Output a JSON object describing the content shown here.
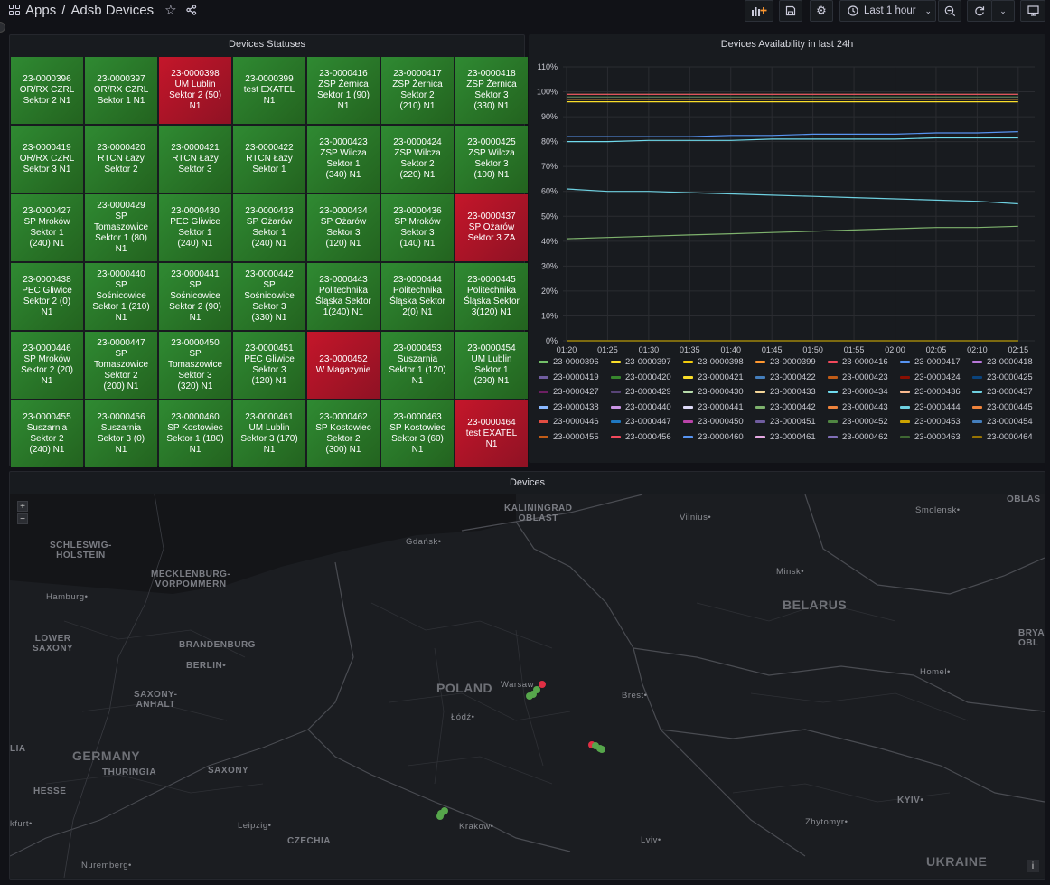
{
  "header": {
    "breadcrumb_apps": "Apps",
    "breadcrumb_sep": "/",
    "breadcrumb_title": "Adsb Devices",
    "time_range": "Last 1 hour"
  },
  "status_panel": {
    "title": "Devices Statuses",
    "cells": [
      {
        "text": "23-0000396\nOR/RX CZRL\nSektor 2 N1",
        "status": "ok"
      },
      {
        "text": "23-0000397\nOR/RX CZRL\nSektor 1 N1",
        "status": "ok"
      },
      {
        "text": "23-0000398\nUM Lublin\nSektor 2 (50)\nN1",
        "status": "bad"
      },
      {
        "text": "23-0000399\ntest EXATEL\nN1",
        "status": "ok"
      },
      {
        "text": "23-0000416\nZSP Żernica\nSektor 1 (90)\nN1",
        "status": "ok"
      },
      {
        "text": "23-0000417\nZSP Żernica\nSektor 2\n(210) N1",
        "status": "ok"
      },
      {
        "text": "23-0000418\nZSP Żernica\nSektor 3\n(330) N1",
        "status": "ok"
      },
      {
        "text": "23-0000419\nOR/RX CZRL\nSektor 3 N1",
        "status": "ok"
      },
      {
        "text": "23-0000420\nRTCN Łazy\nSektor 2",
        "status": "ok"
      },
      {
        "text": "23-0000421\nRTCN Łazy\nSektor 3",
        "status": "ok"
      },
      {
        "text": "23-0000422\nRTCN Łazy\nSektor 1",
        "status": "ok"
      },
      {
        "text": "23-0000423\nZSP Wilcza\nSektor 1\n(340) N1",
        "status": "ok"
      },
      {
        "text": "23-0000424\nZSP Wilcza\nSektor 2\n(220) N1",
        "status": "ok"
      },
      {
        "text": "23-0000425\nZSP Wilcza\nSektor 3\n(100) N1",
        "status": "ok"
      },
      {
        "text": "23-0000427\nSP Mroków\nSektor 1\n(240) N1",
        "status": "ok"
      },
      {
        "text": "23-0000429\nSP\nTomaszowice\nSektor 1 (80)\nN1",
        "status": "ok"
      },
      {
        "text": "23-0000430\nPEC Gliwice\nSektor 1\n(240) N1",
        "status": "ok"
      },
      {
        "text": "23-0000433\nSP Ożarów\nSektor 1\n(240) N1",
        "status": "ok"
      },
      {
        "text": "23-0000434\nSP Ożarów\nSektor 3\n(120) N1",
        "status": "ok"
      },
      {
        "text": "23-0000436\nSP Mroków\nSektor 3\n(140) N1",
        "status": "ok"
      },
      {
        "text": "23-0000437\nSP Ożarów\nSektor 3 ZA",
        "status": "bad"
      },
      {
        "text": "23-0000438\nPEC Gliwice\nSektor 2 (0)\nN1",
        "status": "ok"
      },
      {
        "text": "23-0000440\nSP\nSośnicowice\nSektor 1 (210)\nN1",
        "status": "ok"
      },
      {
        "text": "23-0000441\nSP\nSośnicowice\nSektor 2 (90)\nN1",
        "status": "ok"
      },
      {
        "text": "23-0000442\nSP\nSośnicowice\nSektor 3\n(330) N1",
        "status": "ok"
      },
      {
        "text": "23-0000443\nPolitechnika\nŚląska Sektor\n1(240) N1",
        "status": "ok"
      },
      {
        "text": "23-0000444\nPolitechnika\nŚląska Sektor\n2(0) N1",
        "status": "ok"
      },
      {
        "text": "23-0000445\nPolitechnika\nŚląska Sektor\n3(120) N1",
        "status": "ok"
      },
      {
        "text": "23-0000446\nSP Mroków\nSektor 2 (20)\nN1",
        "status": "ok"
      },
      {
        "text": "23-0000447\nSP\nTomaszowice\nSektor 2\n(200) N1",
        "status": "ok"
      },
      {
        "text": "23-0000450\nSP\nTomaszowice\nSektor 3\n(320) N1",
        "status": "ok"
      },
      {
        "text": "23-0000451\nPEC Gliwice\nSektor 3\n(120) N1",
        "status": "ok"
      },
      {
        "text": "23-0000452\nW Magazynie",
        "status": "bad"
      },
      {
        "text": "23-0000453\nSuszarnia\nSektor 1 (120)\nN1",
        "status": "ok"
      },
      {
        "text": "23-0000454\nUM Lublin\nSektor 1\n(290) N1",
        "status": "ok"
      },
      {
        "text": "23-0000455\nSuszarnia\nSektor 2\n(240) N1",
        "status": "ok"
      },
      {
        "text": "23-0000456\nSuszarnia\nSektor 3 (0)\nN1",
        "status": "ok"
      },
      {
        "text": "23-0000460\nSP Kostowiec\nSektor 1 (180)\nN1",
        "status": "ok"
      },
      {
        "text": "23-0000461\nUM Lublin\nSektor 3 (170)\nN1",
        "status": "ok"
      },
      {
        "text": "23-0000462\nSP Kostowiec\nSektor 2\n(300) N1",
        "status": "ok"
      },
      {
        "text": "23-0000463\nSP Kostowiec\nSektor 3 (60)\nN1",
        "status": "ok"
      },
      {
        "text": "23-0000464\ntest EXATEL\nN1",
        "status": "bad"
      }
    ]
  },
  "chart_panel": {
    "title": "Devices Availability in last 24h"
  },
  "chart_data": {
    "type": "line",
    "title": "Devices Availability in last 24h",
    "xlabel": "",
    "ylabel": "",
    "x": [
      "01:20",
      "01:25",
      "01:30",
      "01:35",
      "01:40",
      "01:45",
      "01:50",
      "01:55",
      "02:00",
      "02:05",
      "02:10",
      "02:15"
    ],
    "yticks": [
      "0%",
      "10%",
      "20%",
      "30%",
      "40%",
      "50%",
      "60%",
      "70%",
      "80%",
      "90%",
      "100%",
      "110%"
    ],
    "ylim": [
      0,
      110
    ],
    "grid": true,
    "legend": "bottom",
    "series": [
      {
        "name": "23-0000396",
        "color": "#73bf69",
        "values": [
          99,
          99,
          99,
          99,
          99,
          99,
          99,
          99,
          99,
          99,
          99,
          99
        ]
      },
      {
        "name": "23-0000397",
        "color": "#fade2a",
        "values": [
          0,
          0,
          0,
          0,
          0,
          0,
          0,
          0,
          0,
          0,
          0,
          0
        ]
      },
      {
        "name": "23-0000398",
        "color": "#f2cc0c",
        "values": [
          97,
          97,
          97,
          97,
          97,
          97,
          97,
          97,
          97,
          97,
          97,
          97
        ]
      },
      {
        "name": "23-0000399",
        "color": "#ff9830",
        "values": [
          98,
          98,
          98,
          98,
          98,
          98,
          98,
          98,
          98,
          98,
          98,
          98
        ]
      },
      {
        "name": "23-0000416",
        "color": "#f2495c",
        "values": [
          99,
          99,
          99,
          99,
          99,
          99,
          99,
          99,
          99,
          99,
          99,
          99
        ]
      },
      {
        "name": "23-0000417",
        "color": "#5794f2",
        "values": [
          82,
          82,
          82,
          82,
          82.5,
          82.5,
          83,
          83,
          83,
          83.5,
          83.5,
          84
        ]
      },
      {
        "name": "23-0000418",
        "color": "#b877d9",
        "values": [
          98,
          98,
          98,
          98,
          98,
          98,
          98,
          98,
          98,
          98,
          98,
          98
        ]
      },
      {
        "name": "23-0000419",
        "color": "#705da0",
        "values": [
          98,
          98,
          98,
          98,
          98,
          98,
          98,
          98,
          98,
          98,
          98,
          98
        ]
      },
      {
        "name": "23-0000420",
        "color": "#37872d",
        "values": [
          97,
          97,
          97,
          97,
          97,
          97,
          97,
          97,
          97,
          97,
          97,
          97
        ]
      },
      {
        "name": "23-0000421",
        "color": "#fade2a",
        "values": [
          96,
          96,
          96,
          96,
          96,
          96,
          96,
          96,
          96,
          96,
          96,
          96
        ]
      },
      {
        "name": "23-0000422",
        "color": "#447ebc",
        "values": [
          98,
          98,
          98,
          98,
          98,
          98,
          98,
          98,
          98,
          98,
          98,
          98
        ]
      },
      {
        "name": "23-0000423",
        "color": "#c15c17",
        "values": [
          98,
          98,
          98,
          98,
          98,
          98,
          98,
          98,
          98,
          98,
          98,
          98
        ]
      },
      {
        "name": "23-0000424",
        "color": "#890f02",
        "values": [
          98,
          98,
          98,
          98,
          98,
          98,
          98,
          98,
          98,
          98,
          98,
          98
        ]
      },
      {
        "name": "23-0000425",
        "color": "#0a437c",
        "values": [
          98,
          98,
          98,
          98,
          98,
          98,
          98,
          98,
          98,
          98,
          98,
          98
        ]
      },
      {
        "name": "23-0000427",
        "color": "#6d1f62",
        "values": [
          98,
          98,
          98,
          98,
          98,
          98,
          98,
          98,
          98,
          98,
          98,
          98
        ]
      },
      {
        "name": "23-0000429",
        "color": "#584477",
        "values": [
          98,
          98,
          98,
          98,
          98,
          98,
          98,
          98,
          98,
          98,
          98,
          98
        ]
      },
      {
        "name": "23-0000430",
        "color": "#b7dbab",
        "values": [
          98,
          98,
          98,
          98,
          98,
          98,
          98,
          98,
          98,
          98,
          98,
          98
        ]
      },
      {
        "name": "23-0000433",
        "color": "#f4d598",
        "values": [
          98,
          98,
          98,
          98,
          98,
          98,
          98,
          98,
          98,
          98,
          98,
          98
        ]
      },
      {
        "name": "23-0000434",
        "color": "#70dbed",
        "values": [
          80,
          80,
          80.5,
          80.5,
          80.5,
          81,
          81,
          81,
          81,
          81.5,
          81.5,
          81.5
        ]
      },
      {
        "name": "23-0000436",
        "color": "#f9ba8f",
        "values": [
          98,
          98,
          98,
          98,
          98,
          98,
          98,
          98,
          98,
          98,
          98,
          98
        ]
      },
      {
        "name": "23-0000437",
        "color": "#6ed0e0",
        "values": [
          61,
          60,
          60,
          59.5,
          59,
          58.5,
          58,
          57.5,
          57,
          56.5,
          56,
          55
        ]
      },
      {
        "name": "23-0000438",
        "color": "#8ab8ff",
        "values": [
          98,
          98,
          98,
          98,
          98,
          98,
          98,
          98,
          98,
          98,
          98,
          98
        ]
      },
      {
        "name": "23-0000440",
        "color": "#ca95e5",
        "values": [
          98,
          98,
          98,
          98,
          98,
          98,
          98,
          98,
          98,
          98,
          98,
          98
        ]
      },
      {
        "name": "23-0000441",
        "color": "#dedaf7",
        "values": [
          98,
          98,
          98,
          98,
          98,
          98,
          98,
          98,
          98,
          98,
          98,
          98
        ]
      },
      {
        "name": "23-0000442",
        "color": "#7eb26d",
        "values": [
          41,
          41.5,
          42,
          42.5,
          43,
          43.5,
          44,
          44.5,
          45,
          45.5,
          45.5,
          46
        ]
      },
      {
        "name": "23-0000443",
        "color": "#ef843c",
        "values": [
          97,
          97,
          97,
          97,
          97,
          97,
          97,
          97,
          97,
          97,
          97,
          97
        ]
      },
      {
        "name": "23-0000444",
        "color": "#6ed0e0",
        "values": [
          98,
          98,
          98,
          98,
          98,
          98,
          98,
          98,
          98,
          98,
          98,
          98
        ]
      },
      {
        "name": "23-0000445",
        "color": "#ef843c",
        "values": [
          98,
          98,
          98,
          98,
          98,
          98,
          98,
          98,
          98,
          98,
          98,
          98
        ]
      },
      {
        "name": "23-0000446",
        "color": "#e24d42",
        "values": [
          98,
          98,
          98,
          98,
          98,
          98,
          98,
          98,
          98,
          98,
          98,
          98
        ]
      },
      {
        "name": "23-0000447",
        "color": "#1f78c1",
        "values": [
          98,
          98,
          98,
          98,
          98,
          98,
          98,
          98,
          98,
          98,
          98,
          98
        ]
      },
      {
        "name": "23-0000450",
        "color": "#ba43a9",
        "values": [
          98,
          98,
          98,
          98,
          98,
          98,
          98,
          98,
          98,
          98,
          98,
          98
        ]
      },
      {
        "name": "23-0000451",
        "color": "#705da0",
        "values": [
          98,
          98,
          98,
          98,
          98,
          98,
          98,
          98,
          98,
          98,
          98,
          98
        ]
      },
      {
        "name": "23-0000452",
        "color": "#508642",
        "values": [
          0,
          0,
          0,
          0,
          0,
          0,
          0,
          0,
          0,
          0,
          0,
          0
        ]
      },
      {
        "name": "23-0000453",
        "color": "#cca300",
        "values": [
          98,
          98,
          98,
          98,
          98,
          98,
          98,
          98,
          98,
          98,
          98,
          98
        ]
      },
      {
        "name": "23-0000454",
        "color": "#447ebc",
        "values": [
          98,
          98,
          98,
          98,
          98,
          98,
          98,
          98,
          98,
          98,
          98,
          98
        ]
      },
      {
        "name": "23-0000455",
        "color": "#c15c17",
        "values": [
          98,
          98,
          98,
          98,
          98,
          98,
          98,
          98,
          98,
          98,
          98,
          98
        ]
      },
      {
        "name": "23-0000456",
        "color": "#f2495c",
        "values": [
          98,
          98,
          98,
          98,
          98,
          98,
          98,
          98,
          98,
          98,
          98,
          98
        ]
      },
      {
        "name": "23-0000460",
        "color": "#5794f2",
        "values": [
          98,
          98,
          98,
          98,
          98,
          98,
          98,
          98,
          98,
          98,
          98,
          98
        ]
      },
      {
        "name": "23-0000461",
        "color": "#e5a8e2",
        "values": [
          98,
          98,
          98,
          98,
          98,
          98,
          98,
          98,
          98,
          98,
          98,
          98
        ]
      },
      {
        "name": "23-0000462",
        "color": "#806eb7",
        "values": [
          98,
          98,
          98,
          98,
          98,
          98,
          98,
          98,
          98,
          98,
          98,
          98
        ]
      },
      {
        "name": "23-0000463",
        "color": "#3f6833",
        "values": [
          98,
          98,
          98,
          98,
          98,
          98,
          98,
          98,
          98,
          98,
          98,
          98
        ]
      },
      {
        "name": "23-0000464",
        "color": "#967302",
        "values": [
          0,
          0,
          0,
          0,
          0,
          0,
          0,
          0,
          0,
          0,
          0,
          0
        ]
      }
    ]
  },
  "map_panel": {
    "title": "Devices",
    "zoom_in": "+",
    "zoom_out": "−",
    "info": "i",
    "labels": {
      "kaliningrad": "KALININGRAD\nOBLAST",
      "vilnius": "Vilnius•",
      "smolensk": "Smolensk•",
      "oblast_r": "OBLAS",
      "schleswig": "SCHLESWIG-\nHOLSTEIN",
      "gdansk": "Gdańsk•",
      "minsk": "Minsk•",
      "mecklenburg": "MECKLENBURG-\nVORPOMMERN",
      "hamburg": "Hamburg•",
      "belarus": "BELARUS",
      "lower_saxony": "LOWER\nSAXONY",
      "brandenburg": "BRANDENBURG",
      "berlin": "BERLIN•",
      "brya": "BRYA\nOBL",
      "homel": "Homel•",
      "saxony_anhalt": "SAXONY-\nANHALT",
      "poland": "POLAND",
      "warsaw": "Warsaw",
      "brest": "Brest•",
      "lodz": "Łódź•",
      "lia": "LIA",
      "germany": "GERMANY",
      "thuringia": "THURINGIA",
      "saxony": "SAXONY",
      "hesse": "HESSE",
      "kyiv": "KYIV•",
      "frankfurt": "kfurt•",
      "leipzig": "Leipzig•",
      "zhytomyr": "Zhytomyr•",
      "krakow": "Krakow•",
      "czechia": "CZECHIA",
      "lviv": "Lviv•",
      "nuremberg": "Nuremberg•",
      "ukraine": "UKRAINE"
    }
  }
}
